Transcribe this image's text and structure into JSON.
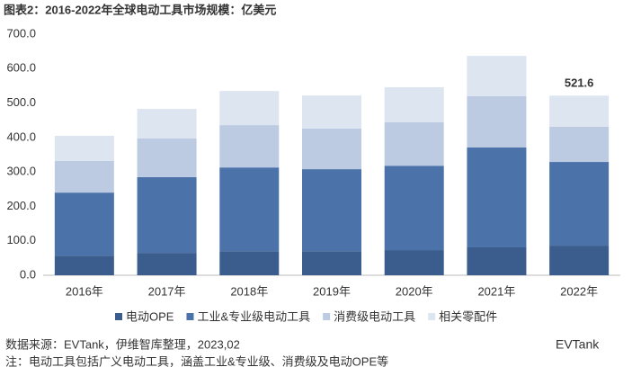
{
  "chart_data": {
    "type": "stacked_bar",
    "title": "图表2：2016-2022年全球电动工具市场规模：亿美元",
    "categories": [
      "2016年",
      "2017年",
      "2018年",
      "2019年",
      "2020年",
      "2021年",
      "2022年"
    ],
    "series": [
      {
        "name": "电动OPE",
        "color": "#3b5d8d",
        "values": [
          57,
          65,
          70,
          70,
          73,
          81,
          86
        ]
      },
      {
        "name": "工业&专业级电动工具",
        "color": "#4b73a9",
        "values": [
          183,
          220,
          243,
          238,
          245,
          290,
          243
        ]
      },
      {
        "name": "消费级电动工具",
        "color": "#bccbe1",
        "values": [
          92,
          112,
          123,
          118,
          126,
          149,
          102
        ]
      },
      {
        "name": "相关零配件",
        "color": "#dde5f1",
        "values": [
          73,
          86,
          99,
          96,
          102,
          117,
          90.6
        ]
      }
    ],
    "total_label": {
      "category_index": 6,
      "value": 521.6
    },
    "ylim": [
      0,
      700
    ],
    "yticks": [
      {
        "value": 0,
        "label": "0.0"
      },
      {
        "value": 100,
        "label": "100.0"
      },
      {
        "value": 200,
        "label": "200.0"
      },
      {
        "value": 300,
        "label": "300.0"
      },
      {
        "value": 400,
        "label": "400.0"
      },
      {
        "value": 500,
        "label": "500.0"
      },
      {
        "value": 600,
        "label": "600.0"
      },
      {
        "value": 700,
        "label": "700.0"
      }
    ],
    "source": "数据来源：EVTank，伊维智库整理，2023,02",
    "note": "注：电动工具包括广义电动工具，涵盖工业&专业级、消费级及电动OPE等",
    "logo": "EVTank"
  }
}
